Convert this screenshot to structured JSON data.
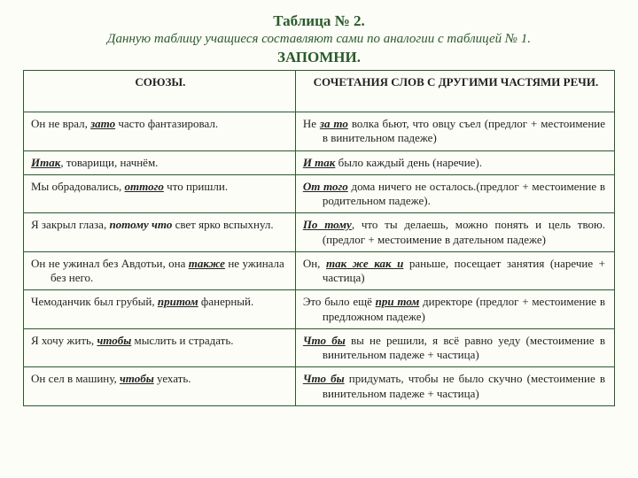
{
  "colors": {
    "accent": "#2a5a2a",
    "background": "#fdfdf8",
    "text": "#222222"
  },
  "heading": {
    "title": "Таблица № 2.",
    "subtitle": "Данную таблицу учащиеся составляют сами по аналогии с таблицей № 1.",
    "remember": "ЗАПОМНИ."
  },
  "table": {
    "headers": {
      "left": "СОЮЗЫ.",
      "right": "СОЧЕТАНИЯ СЛОВ С ДРУГИМИ ЧАСТЯМИ РЕЧИ."
    },
    "rows": [
      {
        "l": {
          "t0": "Он не врал, ",
          "em": "зато",
          "em_style": "biu",
          "t1": " часто фантазировал."
        },
        "r": {
          "t0": "Не ",
          "em": "за то",
          "em_style": "biu",
          "t1": " волка бьют, что овцу съел (предлог + местоимение в винительном падеже)"
        }
      },
      {
        "l": {
          "t0": "",
          "em": "Итак",
          "em_style": "biu",
          "t1": ", товарищи, начнём."
        },
        "r": {
          "t0": "",
          "em": "И так",
          "em_style": "biu",
          "t1": " было каждый день (наречие)."
        }
      },
      {
        "l": {
          "t0": "Мы обрадовались, ",
          "em": "оттого",
          "em_style": "biu",
          "t1": " что пришли."
        },
        "r": {
          "t0": "",
          "em": "От того",
          "em_style": "biu",
          "t1": " дома ничего не осталось.(предлог + местоимение в родительном падеже)."
        }
      },
      {
        "l": {
          "t0": "Я закрыл глаза, ",
          "em": "потому что",
          "em_style": "bi",
          "t1": " свет ярко вспыхнул."
        },
        "r": {
          "t0": "",
          "em": "По тому",
          "em_style": "biu",
          "t1": ", что ты делаешь, можно понять и цель твою. (предлог + местоимение в дательном падеже)"
        }
      },
      {
        "l": {
          "t0": "Он не ужинал без Авдотьи, она ",
          "em": "также",
          "em_style": "biu",
          "t1": " не ужинала без него."
        },
        "r": {
          "t0": "Он, ",
          "em": "так же как и",
          "em_style": "biu",
          "t1": " раньше, посещает занятия (наречие + частица)"
        }
      },
      {
        "l": {
          "t0": "Чемоданчик был грубый, ",
          "em": "притом",
          "em_style": "biu",
          "t1": " фанерный."
        },
        "r": {
          "t0": "Это было ещё ",
          "em": "при том",
          "em_style": "biu",
          "t1": " директоре (предлог + местоимение в предложном падеже)"
        }
      },
      {
        "l": {
          "t0": "Я хочу жить, ",
          "em": "чтобы",
          "em_style": "biu",
          "t1": " мыслить и страдать."
        },
        "r": {
          "t0": "",
          "em": "Что бы",
          "em_style": "biu",
          "t1": " вы не решили, я всё равно уеду (местоимение в винительном падеже + частица)"
        }
      },
      {
        "l": {
          "t0": "Он сел в машину, ",
          "em": "чтобы",
          "em_style": "biu",
          "t1": " уехать."
        },
        "r": {
          "t0": "",
          "em": "Что бы",
          "em_style": "biu",
          "t1": " придумать, чтобы не было скучно (местоимение в винительном падеже + частица)"
        }
      }
    ]
  }
}
